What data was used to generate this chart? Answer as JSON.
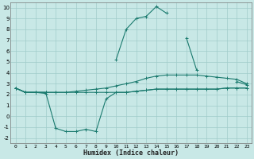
{
  "x": [
    0,
    1,
    2,
    3,
    4,
    5,
    6,
    7,
    8,
    9,
    10,
    11,
    12,
    13,
    14,
    15,
    16,
    17,
    18,
    19,
    20,
    21,
    22,
    23
  ],
  "line_peak": [
    2.6,
    2.2,
    2.2,
    2.1,
    null,
    null,
    null,
    null,
    null,
    null,
    5.2,
    8.0,
    9.0,
    9.2,
    10.1,
    9.5,
    null,
    7.2,
    4.3,
    null,
    null,
    null,
    3.2,
    2.9
  ],
  "line_flat": [
    2.6,
    2.2,
    2.2,
    2.2,
    2.2,
    2.2,
    2.2,
    2.2,
    2.2,
    2.2,
    2.2,
    2.2,
    2.3,
    2.4,
    2.5,
    2.5,
    2.5,
    2.5,
    2.5,
    2.5,
    2.5,
    2.6,
    2.6,
    2.6
  ],
  "line_rise": [
    2.6,
    2.2,
    2.2,
    2.2,
    2.2,
    2.2,
    2.3,
    2.4,
    2.5,
    2.6,
    2.8,
    3.0,
    3.2,
    3.5,
    3.7,
    3.8,
    3.8,
    3.8,
    3.8,
    3.7,
    3.6,
    3.5,
    3.4,
    3.0
  ],
  "line_valley": [
    2.6,
    2.2,
    2.2,
    2.2,
    -1.1,
    -1.4,
    -1.4,
    -1.2,
    -1.4,
    1.6,
    2.2,
    2.2,
    2.3,
    2.4,
    2.5,
    2.5,
    2.5,
    2.5,
    2.5,
    2.5,
    2.5,
    2.6,
    2.6,
    2.6
  ],
  "bg_color": "#c8e8e6",
  "grid_color": "#a0ccca",
  "line_color": "#1a7a6e",
  "xlabel": "Humidex (Indice chaleur)",
  "ylim": [
    -2.5,
    10.5
  ],
  "xlim": [
    -0.5,
    23.5
  ],
  "yticks": [
    -2,
    -1,
    0,
    1,
    2,
    3,
    4,
    5,
    6,
    7,
    8,
    9,
    10
  ],
  "xticks": [
    0,
    1,
    2,
    3,
    4,
    5,
    6,
    7,
    8,
    9,
    10,
    11,
    12,
    13,
    14,
    15,
    16,
    17,
    18,
    19,
    20,
    21,
    22,
    23
  ]
}
